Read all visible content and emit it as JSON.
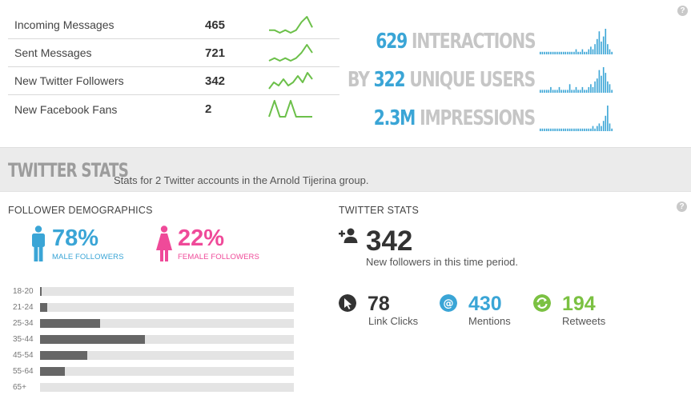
{
  "metrics": [
    {
      "label": "Incoming Messages",
      "value": "465",
      "trend": [
        4,
        4,
        3,
        4,
        3,
        4,
        7,
        9,
        5
      ]
    },
    {
      "label": "Sent Messages",
      "value": "721",
      "trend": [
        3,
        4,
        3,
        4,
        3,
        4,
        6,
        9,
        6
      ]
    },
    {
      "label": "New Twitter Followers",
      "value": "342",
      "trend": [
        4,
        6,
        5,
        7,
        5,
        6,
        8,
        6,
        9,
        7
      ]
    },
    {
      "label": "New Facebook Fans",
      "value": "2",
      "trend": [
        2,
        8,
        2,
        2,
        8,
        2,
        2,
        2,
        2
      ]
    }
  ],
  "big_stats": [
    {
      "prefix": "",
      "number": "629",
      "word": "INTERACTIONS",
      "bars": [
        1,
        1,
        1,
        1,
        1,
        1,
        1,
        1,
        1,
        1,
        1,
        1,
        1,
        1,
        1,
        1,
        1,
        2,
        1,
        1,
        2,
        1,
        1,
        2,
        3,
        2,
        4,
        6,
        9,
        5,
        7,
        10,
        4,
        2,
        1
      ]
    },
    {
      "prefix": "BY ",
      "number": "322",
      "word": "UNIQUE USERS",
      "bars": [
        1,
        1,
        1,
        1,
        1,
        2,
        1,
        1,
        1,
        2,
        1,
        1,
        1,
        1,
        3,
        1,
        1,
        2,
        1,
        1,
        2,
        1,
        1,
        2,
        3,
        2,
        4,
        5,
        8,
        6,
        9,
        7,
        4,
        3,
        1
      ]
    },
    {
      "prefix": "",
      "number": "2.3M",
      "word": "IMPRESSIONS",
      "bars": [
        1,
        1,
        1,
        1,
        1,
        1,
        1,
        1,
        1,
        1,
        1,
        1,
        1,
        1,
        1,
        1,
        1,
        1,
        1,
        1,
        1,
        1,
        1,
        1,
        1,
        2,
        1,
        2,
        3,
        2,
        4,
        6,
        10,
        3,
        1
      ]
    }
  ],
  "band": {
    "title": "TWITTER STATS",
    "subtitle": "Stats for 2 Twitter accounts in the Arnold Tijerina group."
  },
  "demographics": {
    "title": "FOLLOWER DEMOGRAPHICS",
    "male": {
      "pct": "78%",
      "caption": "MALE FOLLOWERS"
    },
    "female": {
      "pct": "22%",
      "caption": "FEMALE FOLLOWERS"
    },
    "ages": [
      {
        "label": "18-20",
        "value": 0.01
      },
      {
        "label": "21-24",
        "value": 0.03
      },
      {
        "label": "25-34",
        "value": 0.24
      },
      {
        "label": "35-44",
        "value": 0.42
      },
      {
        "label": "45-54",
        "value": 0.19
      },
      {
        "label": "55-64",
        "value": 0.1
      },
      {
        "label": "65+",
        "value": 0.0
      }
    ]
  },
  "twitter": {
    "title": "TWITTER STATS",
    "new_followers": "342",
    "new_followers_caption": "New followers in this time period.",
    "link_clicks": {
      "value": "78",
      "label": "Link Clicks"
    },
    "mentions": {
      "value": "430",
      "label": "Mentions"
    },
    "retweets": {
      "value": "194",
      "label": "Retweets"
    }
  },
  "help_glyph": "?",
  "colors": {
    "accent_blue": "#3aa5d6",
    "pink": "#ef4a99",
    "green": "#7bc142",
    "spark_green": "#6cc04a",
    "dark": "#333333"
  }
}
